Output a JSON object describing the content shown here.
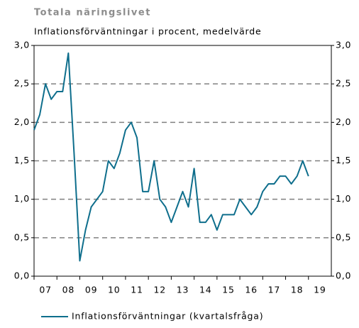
{
  "chart_data": {
    "type": "line",
    "title": "Totala näringslivet",
    "subtitle": "Inflationsförväntningar i procent, medelvärde",
    "x": [
      2007,
      2007.25,
      2007.5,
      2007.75,
      2008,
      2008.25,
      2008.5,
      2008.75,
      2009,
      2009.25,
      2009.5,
      2009.75,
      2010,
      2010.25,
      2010.5,
      2010.75,
      2011,
      2011.25,
      2011.5,
      2011.75,
      2012,
      2012.25,
      2012.5,
      2012.75,
      2013,
      2013.25,
      2013.5,
      2013.75,
      2014,
      2014.25,
      2014.5,
      2014.75,
      2015,
      2015.25,
      2015.5,
      2015.75,
      2016,
      2016.25,
      2016.5,
      2016.75,
      2017,
      2017.25,
      2017.5,
      2017.75,
      2018,
      2018.25,
      2018.5,
      2018.75,
      2019
    ],
    "series": [
      {
        "name": "Inflationsförväntningar (kvartalsfråga)",
        "color": "#0e6e8c",
        "values": [
          1.9,
          2.1,
          2.5,
          2.3,
          2.4,
          2.4,
          2.9,
          1.6,
          0.2,
          0.6,
          0.9,
          1.0,
          1.1,
          1.5,
          1.4,
          1.6,
          1.9,
          2.0,
          1.8,
          1.1,
          1.1,
          1.5,
          1.0,
          0.9,
          0.7,
          0.9,
          1.1,
          0.9,
          1.4,
          0.7,
          0.7,
          0.8,
          0.6,
          0.8,
          0.8,
          0.8,
          1.0,
          0.9,
          0.8,
          0.9,
          1.1,
          1.2,
          1.2,
          1.3,
          1.3,
          1.2,
          1.3,
          1.5,
          1.3
        ]
      }
    ],
    "xlim": [
      2007,
      2020
    ],
    "xticks": [
      {
        "value": 2007,
        "label": "07"
      },
      {
        "value": 2008,
        "label": "08"
      },
      {
        "value": 2009,
        "label": "09"
      },
      {
        "value": 2010,
        "label": "10"
      },
      {
        "value": 2011,
        "label": "11"
      },
      {
        "value": 2012,
        "label": "12"
      },
      {
        "value": 2013,
        "label": "13"
      },
      {
        "value": 2014,
        "label": "14"
      },
      {
        "value": 2015,
        "label": "15"
      },
      {
        "value": 2016,
        "label": "16"
      },
      {
        "value": 2017,
        "label": "17"
      },
      {
        "value": 2018,
        "label": "18"
      },
      {
        "value": 2019,
        "label": "19"
      }
    ],
    "ylim": [
      0,
      3
    ],
    "yticks": [
      {
        "value": 0,
        "label": "0,0"
      },
      {
        "value": 0.5,
        "label": "0,5"
      },
      {
        "value": 1,
        "label": "1,0"
      },
      {
        "value": 1.5,
        "label": "1,5"
      },
      {
        "value": 2,
        "label": "2,0"
      },
      {
        "value": 2.5,
        "label": "2,5"
      },
      {
        "value": 3,
        "label": "3,0"
      }
    ],
    "y2lim": [
      0,
      3
    ],
    "y2ticks": [
      {
        "value": 0,
        "label": "0,0"
      },
      {
        "value": 0.5,
        "label": "0,5"
      },
      {
        "value": 1,
        "label": "1,0"
      },
      {
        "value": 1.5,
        "label": "1,5"
      },
      {
        "value": 2,
        "label": "2,0"
      },
      {
        "value": 2.5,
        "label": "2,5"
      },
      {
        "value": 3,
        "label": "3,0"
      }
    ],
    "grid": true,
    "legend": "bottom"
  }
}
